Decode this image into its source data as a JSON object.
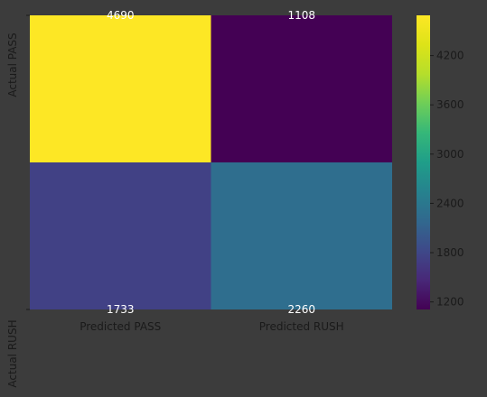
{
  "chart_data": {
    "type": "heatmap",
    "title": "",
    "xlabel": "",
    "ylabel": "",
    "x_categories": [
      "Predicted PASS",
      "Predicted RUSH"
    ],
    "y_categories": [
      "Actual PASS",
      "Actual RUSH"
    ],
    "values": [
      [
        4690,
        1108
      ],
      [
        1733,
        2260
      ]
    ],
    "value_labels": [
      "4690",
      "1108",
      "1733",
      "2260"
    ],
    "colormap": "viridis",
    "colorbar": {
      "range": [
        1108,
        4690
      ],
      "ticks": [
        1200,
        1800,
        2400,
        3000,
        3600,
        4200
      ],
      "tick_labels": [
        "1200",
        "1800",
        "2400",
        "3000",
        "3600",
        "4200"
      ]
    },
    "grid": false,
    "legend": "colorbar-right",
    "colors": {
      "background": "#3c3c3c",
      "axis_text": "#1a1a1a",
      "cell_text": "#ffffff"
    }
  }
}
